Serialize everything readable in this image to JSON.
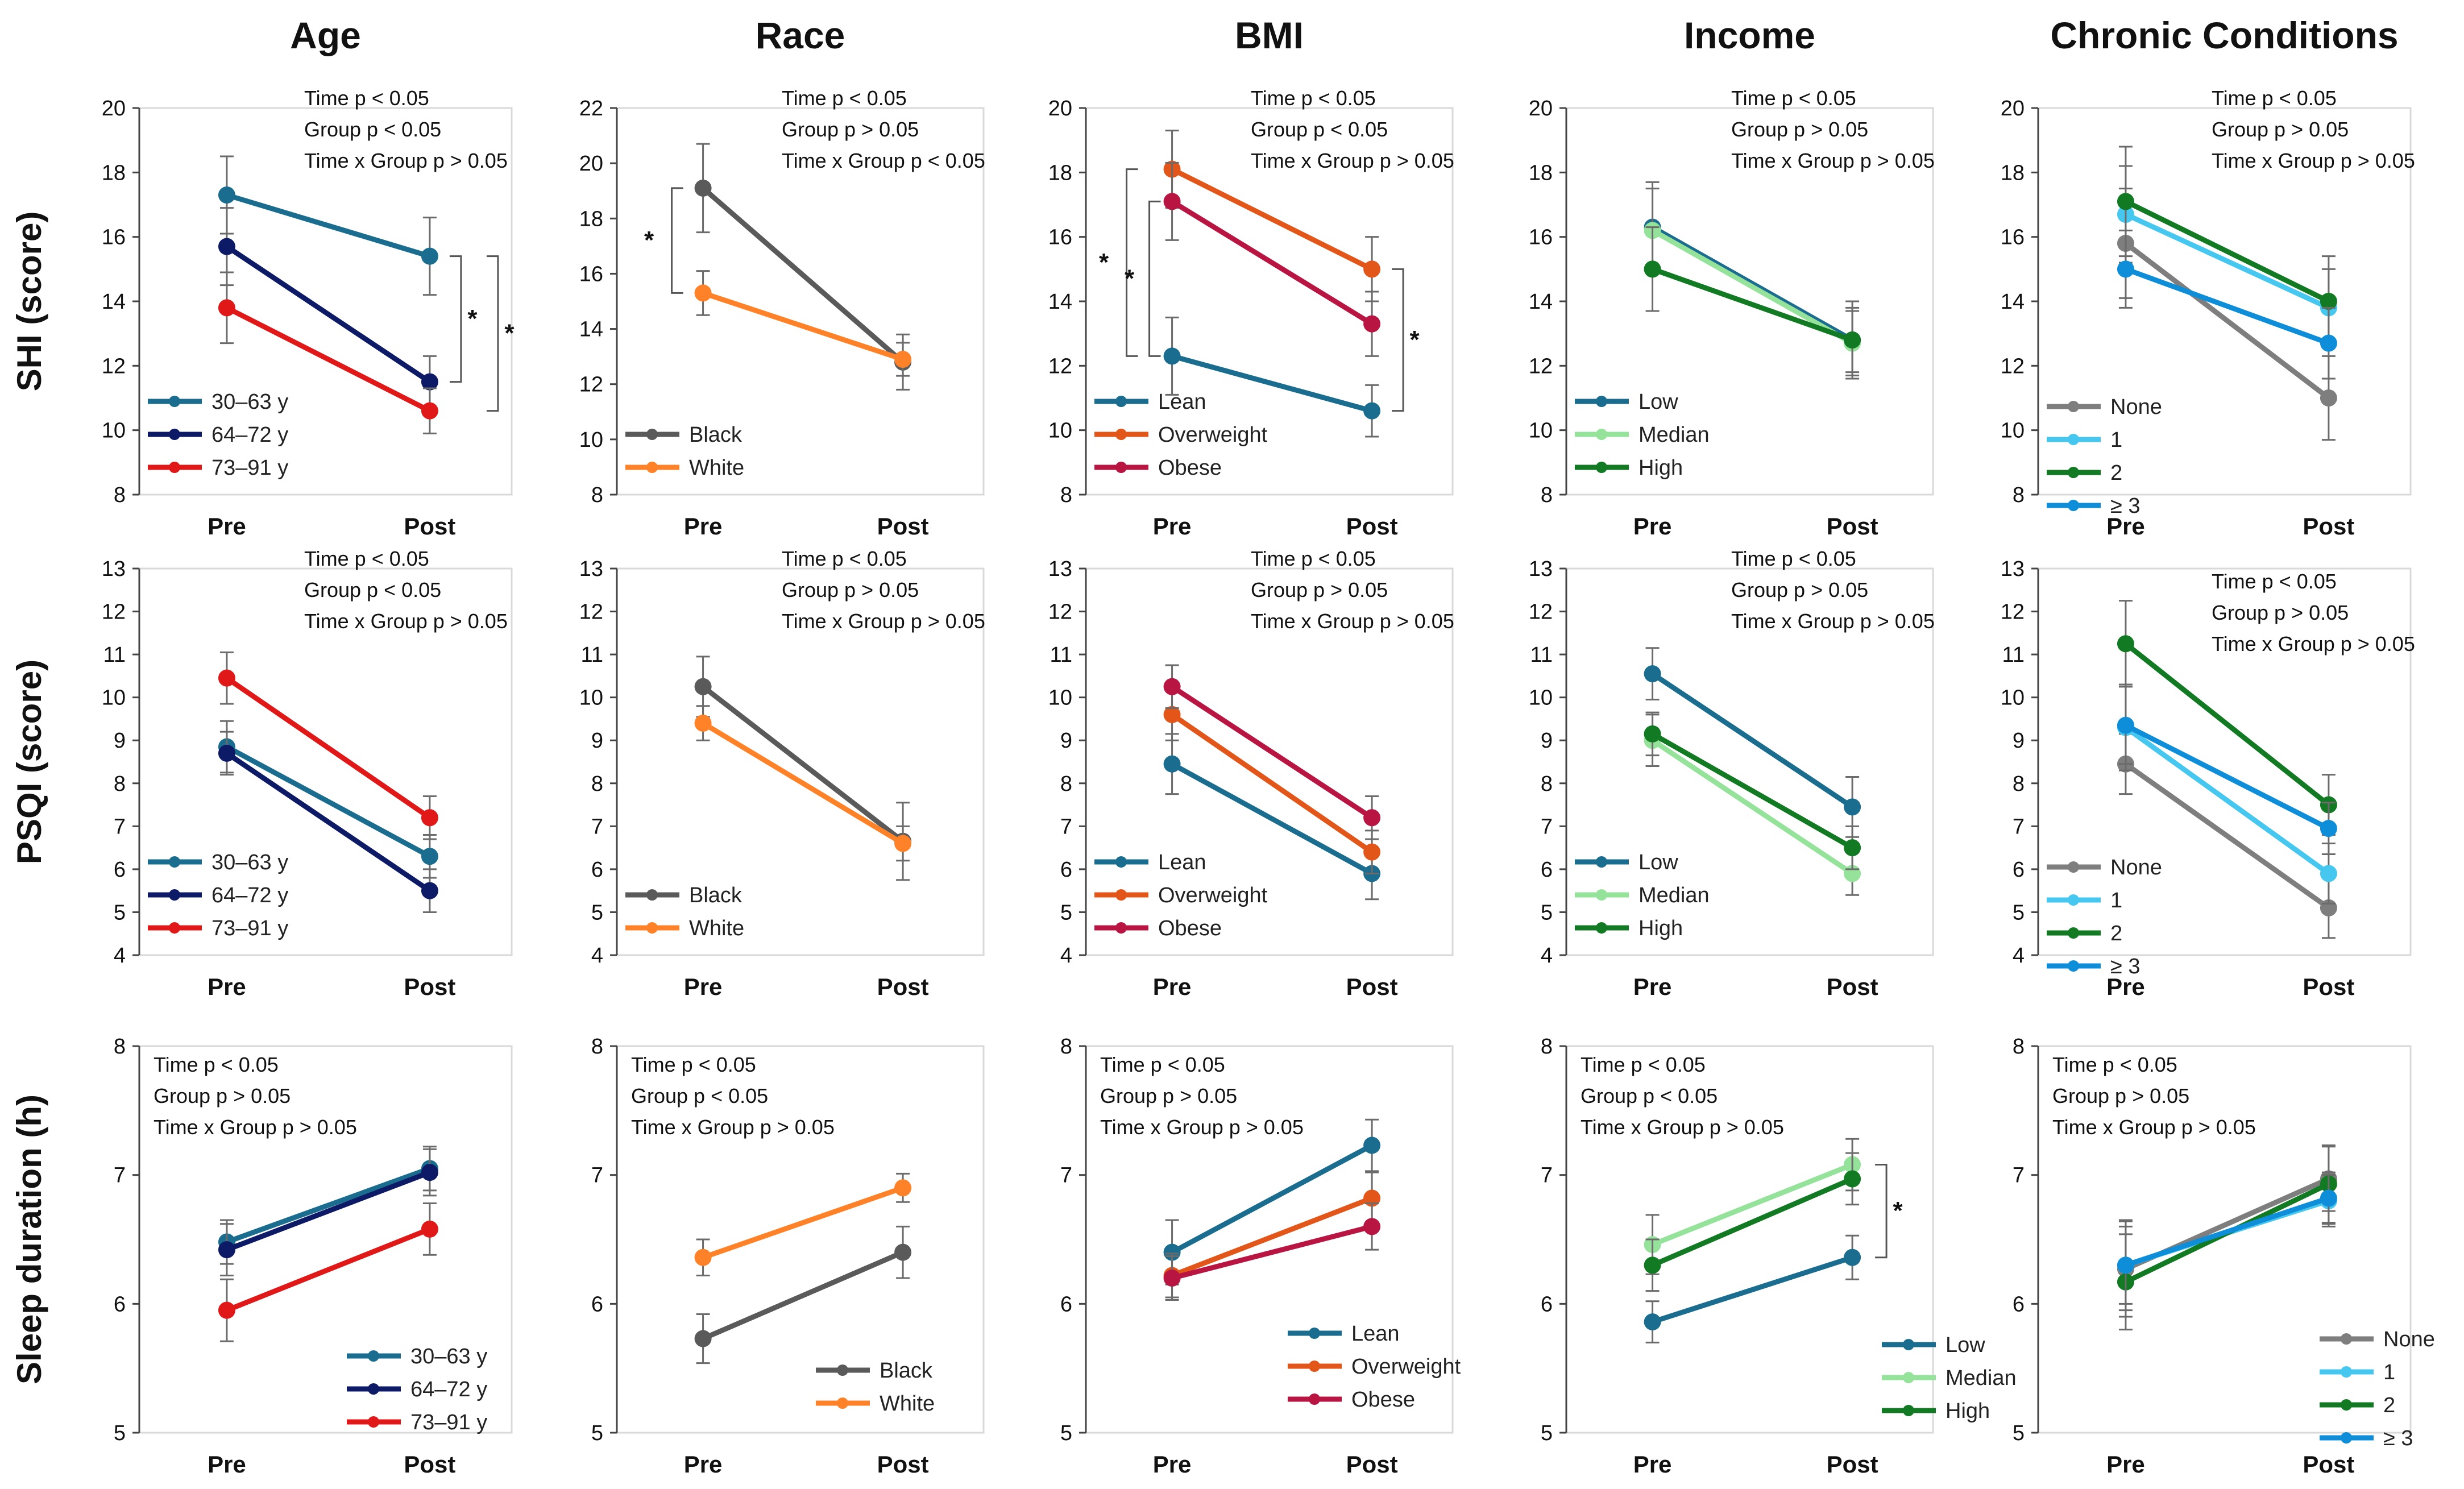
{
  "column_titles": [
    "Age",
    "Race",
    "BMI",
    "Income",
    "Chronic Conditions"
  ],
  "row_labels": [
    "SHI (score)",
    "PSQI (score)",
    "Sleep duration (h)"
  ],
  "chart_data": [
    {
      "type": "line",
      "row": 0,
      "col": 0,
      "title": "Age",
      "ylabel": "SHI (score)",
      "categories": [
        "Pre",
        "Post"
      ],
      "ylim": [
        8,
        20
      ],
      "yticks": [
        8,
        10,
        12,
        14,
        16,
        18,
        20
      ],
      "stats": [
        "Time p < 0.05",
        "Group p < 0.05",
        "Time x Group p > 0.05"
      ],
      "series": [
        {
          "name": "30–63 y",
          "color": "#1a6d8f",
          "values": [
            17.3,
            15.4
          ],
          "errors": [
            1.2,
            1.2
          ]
        },
        {
          "name": "64–72 y",
          "color": "#0d1a66",
          "values": [
            15.7,
            11.5
          ],
          "errors": [
            1.2,
            0.8
          ]
        },
        {
          "name": "73–91 y",
          "color": "#e01818",
          "values": [
            13.8,
            10.6
          ],
          "errors": [
            1.1,
            0.7
          ]
        }
      ],
      "significance": [
        "*",
        "*"
      ]
    },
    {
      "type": "line",
      "row": 0,
      "col": 1,
      "title": "Race",
      "ylabel": "SHI (score)",
      "categories": [
        "Pre",
        "Post"
      ],
      "ylim": [
        8,
        22
      ],
      "yticks": [
        8,
        10,
        12,
        14,
        16,
        18,
        20,
        22
      ],
      "stats": [
        "Time p < 0.05",
        "Group p > 0.05",
        "Time x Group p < 0.05"
      ],
      "series": [
        {
          "name": "Black",
          "color": "#5a5a5a",
          "values": [
            19.1,
            12.8
          ],
          "errors": [
            1.6,
            1.0
          ]
        },
        {
          "name": "White",
          "color": "#ff8228",
          "values": [
            15.3,
            12.9
          ],
          "errors": [
            0.8,
            0.6
          ]
        }
      ],
      "significance": [
        "*"
      ]
    },
    {
      "type": "line",
      "row": 0,
      "col": 2,
      "title": "BMI",
      "ylabel": "SHI (score)",
      "categories": [
        "Pre",
        "Post"
      ],
      "ylim": [
        8,
        20
      ],
      "yticks": [
        8,
        10,
        12,
        14,
        16,
        18,
        20
      ],
      "stats": [
        "Time p < 0.05",
        "Group p < 0.05",
        "Time x Group p > 0.05"
      ],
      "series": [
        {
          "name": "Lean",
          "color": "#1a6d8f",
          "values": [
            12.3,
            10.6
          ],
          "errors": [
            1.2,
            0.8
          ]
        },
        {
          "name": "Overweight",
          "color": "#e3561a",
          "values": [
            18.1,
            15.0
          ],
          "errors": [
            1.2,
            1.0
          ]
        },
        {
          "name": "Obese",
          "color": "#b81542",
          "values": [
            17.1,
            13.3
          ],
          "errors": [
            1.2,
            1.0
          ]
        }
      ],
      "significance": [
        "*",
        "*",
        "*"
      ]
    },
    {
      "type": "line",
      "row": 0,
      "col": 3,
      "title": "Income",
      "ylabel": "SHI (score)",
      "categories": [
        "Pre",
        "Post"
      ],
      "ylim": [
        8,
        20
      ],
      "yticks": [
        8,
        10,
        12,
        14,
        16,
        18,
        20
      ],
      "stats": [
        "Time p < 0.05",
        "Group p > 0.05",
        "Time x Group p > 0.05"
      ],
      "series": [
        {
          "name": "Low",
          "color": "#1a6d8f",
          "values": [
            16.3,
            12.8
          ],
          "errors": [
            1.4,
            1.2
          ]
        },
        {
          "name": "Median",
          "color": "#95e39b",
          "values": [
            16.2,
            12.7
          ],
          "errors": [
            1.3,
            1.0
          ]
        },
        {
          "name": "High",
          "color": "#127a22",
          "values": [
            15.0,
            12.8
          ],
          "errors": [
            1.3,
            1.0
          ]
        }
      ],
      "significance": []
    },
    {
      "type": "line",
      "row": 0,
      "col": 4,
      "title": "Chronic Conditions",
      "ylabel": "SHI (score)",
      "categories": [
        "Pre",
        "Post"
      ],
      "ylim": [
        8,
        20
      ],
      "yticks": [
        8,
        10,
        12,
        14,
        16,
        18,
        20
      ],
      "stats": [
        "Time p < 0.05",
        "Group p > 0.05",
        "Time x Group p > 0.05"
      ],
      "series": [
        {
          "name": "None",
          "color": "#7e7e7e",
          "values": [
            15.8,
            11.0
          ],
          "errors": [
            1.7,
            1.3
          ]
        },
        {
          "name": "1",
          "color": "#45c7ef",
          "values": [
            16.7,
            13.8
          ],
          "errors": [
            1.5,
            1.2
          ]
        },
        {
          "name": "2",
          "color": "#127a22",
          "values": [
            17.1,
            14.0
          ],
          "errors": [
            1.7,
            1.4
          ]
        },
        {
          "name": "≥ 3",
          "color": "#0e8ed8",
          "values": [
            15.0,
            12.7
          ],
          "errors": [
            1.2,
            1.1
          ]
        }
      ],
      "significance": []
    },
    {
      "type": "line",
      "row": 1,
      "col": 0,
      "title": "Age",
      "ylabel": "PSQI (score)",
      "categories": [
        "Pre",
        "Post"
      ],
      "ylim": [
        4,
        13
      ],
      "yticks": [
        4,
        5,
        6,
        7,
        8,
        9,
        10,
        11,
        12,
        13
      ],
      "stats": [
        "Time p < 0.05",
        "Group p < 0.05",
        "Time x Group p > 0.05"
      ],
      "series": [
        {
          "name": "30–63 y",
          "color": "#1a6d8f",
          "values": [
            8.85,
            6.3
          ],
          "errors": [
            0.6,
            0.5
          ]
        },
        {
          "name": "64–72 y",
          "color": "#0d1a66",
          "values": [
            8.7,
            5.5
          ],
          "errors": [
            0.5,
            0.5
          ]
        },
        {
          "name": "73–91 y",
          "color": "#e01818",
          "values": [
            10.45,
            7.2
          ],
          "errors": [
            0.6,
            0.5
          ]
        }
      ],
      "significance": []
    },
    {
      "type": "line",
      "row": 1,
      "col": 1,
      "title": "Race",
      "ylabel": "PSQI (score)",
      "categories": [
        "Pre",
        "Post"
      ],
      "ylim": [
        4,
        13
      ],
      "yticks": [
        4,
        5,
        6,
        7,
        8,
        9,
        10,
        11,
        12,
        13
      ],
      "stats": [
        "Time p < 0.05",
        "Group p > 0.05",
        "Time x Group p > 0.05"
      ],
      "series": [
        {
          "name": "Black",
          "color": "#5a5a5a",
          "values": [
            10.25,
            6.65
          ],
          "errors": [
            0.7,
            0.9
          ]
        },
        {
          "name": "White",
          "color": "#ff8228",
          "values": [
            9.4,
            6.6
          ],
          "errors": [
            0.4,
            0.4
          ]
        }
      ],
      "significance": []
    },
    {
      "type": "line",
      "row": 1,
      "col": 2,
      "title": "BMI",
      "ylabel": "PSQI (score)",
      "categories": [
        "Pre",
        "Post"
      ],
      "ylim": [
        4,
        13
      ],
      "yticks": [
        4,
        5,
        6,
        7,
        8,
        9,
        10,
        11,
        12,
        13
      ],
      "stats": [
        "Time p < 0.05",
        "Group p > 0.05",
        "Time x Group p > 0.05"
      ],
      "series": [
        {
          "name": "Lean",
          "color": "#1a6d8f",
          "values": [
            8.45,
            5.9
          ],
          "errors": [
            0.7,
            0.6
          ]
        },
        {
          "name": "Overweight",
          "color": "#e3561a",
          "values": [
            9.6,
            6.4
          ],
          "errors": [
            0.6,
            0.5
          ]
        },
        {
          "name": "Obese",
          "color": "#b81542",
          "values": [
            10.25,
            7.2
          ],
          "errors": [
            0.5,
            0.5
          ]
        }
      ],
      "significance": []
    },
    {
      "type": "line",
      "row": 1,
      "col": 3,
      "title": "Income",
      "ylabel": "PSQI (score)",
      "categories": [
        "Pre",
        "Post"
      ],
      "ylim": [
        4,
        13
      ],
      "yticks": [
        4,
        5,
        6,
        7,
        8,
        9,
        10,
        11,
        12,
        13
      ],
      "stats": [
        "Time p < 0.05",
        "Group p > 0.05",
        "Time x Group p > 0.05"
      ],
      "series": [
        {
          "name": "Low",
          "color": "#1a6d8f",
          "values": [
            10.55,
            7.45
          ],
          "errors": [
            0.6,
            0.7
          ]
        },
        {
          "name": "Median",
          "color": "#95e39b",
          "values": [
            9.0,
            5.9
          ],
          "errors": [
            0.6,
            0.5
          ]
        },
        {
          "name": "High",
          "color": "#127a22",
          "values": [
            9.15,
            6.5
          ],
          "errors": [
            0.5,
            0.5
          ]
        }
      ],
      "significance": []
    },
    {
      "type": "line",
      "row": 1,
      "col": 4,
      "title": "Chronic Conditions",
      "ylabel": "PSQI (score)",
      "categories": [
        "Pre",
        "Post"
      ],
      "ylim": [
        4,
        13
      ],
      "yticks": [
        4,
        5,
        6,
        7,
        8,
        9,
        10,
        11,
        12,
        13
      ],
      "stats": [
        "Time p < 0.05",
        "Group p > 0.05",
        "Time x Group p > 0.05"
      ],
      "series": [
        {
          "name": "None",
          "color": "#7e7e7e",
          "values": [
            8.45,
            5.1
          ],
          "errors": [
            0.7,
            0.7
          ]
        },
        {
          "name": "1",
          "color": "#45c7ef",
          "values": [
            9.3,
            5.9
          ],
          "errors": [
            1.0,
            0.7
          ]
        },
        {
          "name": "2",
          "color": "#127a22",
          "values": [
            11.25,
            7.5
          ],
          "errors": [
            1.0,
            0.7
          ]
        },
        {
          "name": "≥ 3",
          "color": "#0e8ed8",
          "values": [
            9.35,
            6.95
          ],
          "errors": [
            0.9,
            0.6
          ]
        }
      ],
      "significance": []
    },
    {
      "type": "line",
      "row": 2,
      "col": 0,
      "title": "Age",
      "ylabel": "Sleep duration (h)",
      "categories": [
        "Pre",
        "Post"
      ],
      "ylim": [
        5,
        8
      ],
      "yticks": [
        5,
        6,
        7,
        8
      ],
      "stats": [
        "Time p < 0.05",
        "Group p > 0.05",
        "Time x Group p > 0.05"
      ],
      "series": [
        {
          "name": "30–63 y",
          "color": "#1a6d8f",
          "values": [
            6.48,
            7.05
          ],
          "errors": [
            0.17,
            0.17
          ]
        },
        {
          "name": "64–72 y",
          "color": "#0d1a66",
          "values": [
            6.42,
            7.02
          ],
          "errors": [
            0.2,
            0.18
          ]
        },
        {
          "name": "73–91 y",
          "color": "#e01818",
          "values": [
            5.95,
            6.58
          ],
          "errors": [
            0.24,
            0.2
          ]
        }
      ],
      "significance": []
    },
    {
      "type": "line",
      "row": 2,
      "col": 1,
      "title": "Race",
      "ylabel": "Sleep duration (h)",
      "categories": [
        "Pre",
        "Post"
      ],
      "ylim": [
        5,
        8
      ],
      "yticks": [
        5,
        6,
        7,
        8
      ],
      "stats": [
        "Time p < 0.05",
        "Group p < 0.05",
        "Time x Group p > 0.05"
      ],
      "series": [
        {
          "name": "Black",
          "color": "#5a5a5a",
          "values": [
            5.73,
            6.4
          ],
          "errors": [
            0.19,
            0.2
          ]
        },
        {
          "name": "White",
          "color": "#ff8228",
          "values": [
            6.36,
            6.9
          ],
          "errors": [
            0.14,
            0.11
          ]
        }
      ],
      "significance": []
    },
    {
      "type": "line",
      "row": 2,
      "col": 2,
      "title": "BMI",
      "ylabel": "Sleep duration (h)",
      "categories": [
        "Pre",
        "Post"
      ],
      "ylim": [
        5,
        8
      ],
      "yticks": [
        5,
        6,
        7,
        8
      ],
      "stats": [
        "Time p < 0.05",
        "Group p > 0.05",
        "Time x Group p > 0.05"
      ],
      "series": [
        {
          "name": "Lean",
          "color": "#1a6d8f",
          "values": [
            6.4,
            7.23
          ],
          "errors": [
            0.25,
            0.2
          ]
        },
        {
          "name": "Overweight",
          "color": "#e3561a",
          "values": [
            6.22,
            6.82
          ],
          "errors": [
            0.17,
            0.2
          ]
        },
        {
          "name": "Obese",
          "color": "#b81542",
          "values": [
            6.2,
            6.6
          ],
          "errors": [
            0.17,
            0.18
          ]
        }
      ],
      "significance": []
    },
    {
      "type": "line",
      "row": 2,
      "col": 3,
      "title": "Income",
      "ylabel": "Sleep duration (h)",
      "categories": [
        "Pre",
        "Post"
      ],
      "ylim": [
        5,
        8
      ],
      "yticks": [
        5,
        6,
        7,
        8
      ],
      "stats": [
        "Time p < 0.05",
        "Group p < 0.05",
        "Time x Group p > 0.05"
      ],
      "series": [
        {
          "name": "Low",
          "color": "#1a6d8f",
          "values": [
            5.86,
            6.36
          ],
          "errors": [
            0.16,
            0.17
          ]
        },
        {
          "name": "Median",
          "color": "#95e39b",
          "values": [
            6.46,
            7.08
          ],
          "errors": [
            0.23,
            0.2
          ]
        },
        {
          "name": "High",
          "color": "#127a22",
          "values": [
            6.3,
            6.97
          ],
          "errors": [
            0.2,
            0.2
          ]
        }
      ],
      "significance": [
        "*"
      ]
    },
    {
      "type": "line",
      "row": 2,
      "col": 4,
      "title": "Chronic Conditions",
      "ylabel": "Sleep duration (h)",
      "categories": [
        "Pre",
        "Post"
      ],
      "ylim": [
        5,
        8
      ],
      "yticks": [
        5,
        6,
        7,
        8
      ],
      "stats": [
        "Time p < 0.05",
        "Group p > 0.05",
        "Time x Group p > 0.05"
      ],
      "series": [
        {
          "name": "None",
          "color": "#7e7e7e",
          "values": [
            6.27,
            6.97
          ],
          "errors": [
            0.37,
            0.25
          ]
        },
        {
          "name": "1",
          "color": "#45c7ef",
          "values": [
            6.3,
            6.8
          ],
          "errors": [
            0.35,
            0.2
          ]
        },
        {
          "name": "2",
          "color": "#127a22",
          "values": [
            6.17,
            6.93
          ],
          "errors": [
            0.37,
            0.3
          ]
        },
        {
          "name": "≥ 3",
          "color": "#0e8ed8",
          "values": [
            6.3,
            6.82
          ],
          "errors": [
            0.3,
            0.2
          ]
        }
      ],
      "significance": []
    }
  ]
}
